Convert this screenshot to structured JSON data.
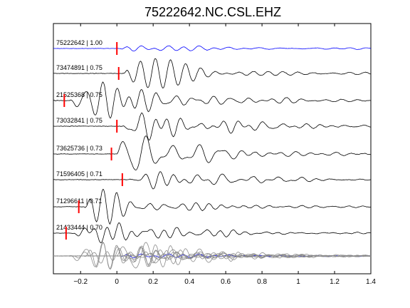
{
  "chart_data": {
    "type": "line",
    "title": "75222642.NC.CSL.EHZ",
    "xlabel": "",
    "ylabel": "",
    "xlim": [
      -0.35,
      1.4
    ],
    "x_ticks": [
      -0.2,
      0,
      0.2,
      0.4,
      0.6,
      0.8,
      1,
      1.2,
      1.4
    ],
    "x_tick_labels": [
      "−0.2",
      "0",
      "0.2",
      "0.4",
      "0.6",
      "0.8",
      "1",
      "1.2",
      "1.4"
    ],
    "grid": false,
    "legend": "none",
    "colors": {
      "reference": "#0000ff",
      "trace": "#000000",
      "overlay": "#8c8c8c",
      "pick": "#ff0000"
    },
    "traces": [
      {
        "label": "75222642 | 1.00",
        "pick": 0.0,
        "reference": true
      },
      {
        "label": "73474891 | 0.75",
        "pick": 0.01
      },
      {
        "label": "21525368 | 0.75",
        "pick": -0.29
      },
      {
        "label": "73032841 | 0.75",
        "pick": 0.0
      },
      {
        "label": "73625736 | 0.73",
        "pick": -0.03
      },
      {
        "label": "71596405 | 0.71",
        "pick": 0.03
      },
      {
        "label": "71296611 | 0.71",
        "pick": -0.21
      },
      {
        "label": "21433444 | 0.70",
        "pick": -0.28
      }
    ],
    "stack": {
      "label": ""
    }
  }
}
